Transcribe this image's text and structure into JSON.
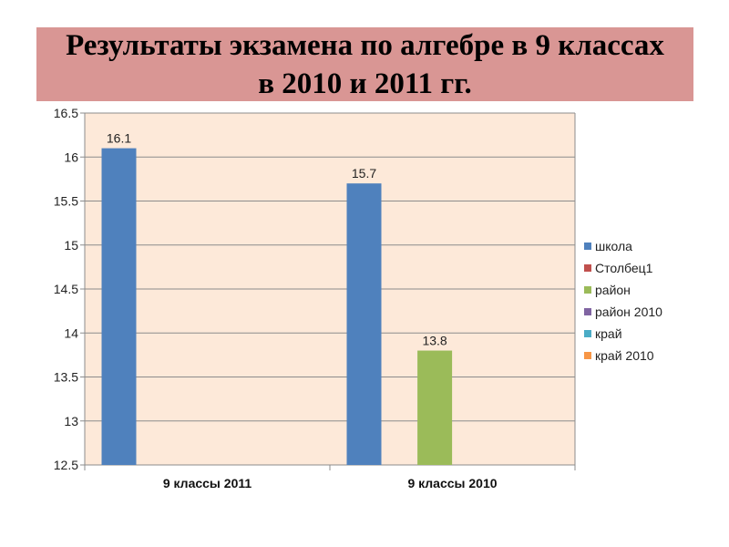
{
  "title": "Результаты экзамена по алгебре в 9 классах в 2010 и 2011 гг.",
  "chart_data": {
    "type": "bar",
    "title": "Результаты экзамена по алгебре в 9 классах в 2010 и 2011 гг.",
    "xlabel": "",
    "ylabel": "",
    "categories": [
      "9 классы 2011",
      "9 классы 2010"
    ],
    "ylim": [
      12.5,
      16.5
    ],
    "yticks": [
      12.5,
      13,
      13.5,
      14,
      14.5,
      15,
      15.5,
      16,
      16.5
    ],
    "grid": true,
    "legend_position": "right",
    "plot_background": "#fde9d9",
    "series": [
      {
        "name": "школа",
        "color": "#4f81bd",
        "values": [
          16.1,
          15.7
        ]
      },
      {
        "name": "Столбец1",
        "color": "#c0504d",
        "values": [
          null,
          null
        ]
      },
      {
        "name": "район",
        "color": "#9bbb59",
        "values": [
          null,
          13.8
        ]
      },
      {
        "name": "район 2010",
        "color": "#8064a2",
        "values": [
          null,
          null
        ]
      },
      {
        "name": "край",
        "color": "#4bacc6",
        "values": [
          null,
          null
        ]
      },
      {
        "name": "край 2010",
        "color": "#f79646",
        "values": [
          null,
          null
        ]
      }
    ]
  }
}
